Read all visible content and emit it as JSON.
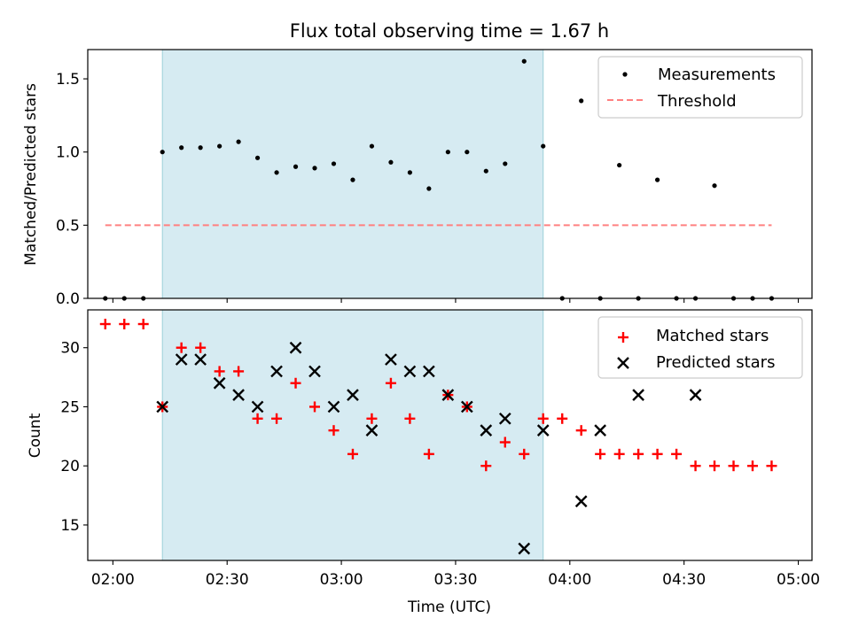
{
  "chart_data": [
    {
      "type": "scatter",
      "title": "Flux total observing time = 1.67 h",
      "ylabel": "Matched/Predicted stars",
      "xlim": [
        1.89,
        5.06
      ],
      "ylim": [
        0.0,
        1.7
      ],
      "yticks": [
        0.0,
        0.5,
        1.0,
        1.5
      ],
      "ytick_labels": [
        "0.0",
        "0.5",
        "1.0",
        "1.5"
      ],
      "shaded_interval": [
        2.2167,
        3.8833
      ],
      "series": [
        {
          "name": "Measurements",
          "marker": "dot",
          "color": "#000000",
          "x": [
            1.9667,
            2.05,
            2.1333,
            2.2167,
            2.3,
            2.3833,
            2.4667,
            2.55,
            2.6333,
            2.7167,
            2.8,
            2.8833,
            2.9667,
            3.05,
            3.1333,
            3.2167,
            3.3,
            3.3833,
            3.4667,
            3.55,
            3.6333,
            3.7167,
            3.8,
            3.8833,
            3.9667,
            4.05,
            4.1333,
            4.2167,
            4.3,
            4.3833,
            4.4667,
            4.55,
            4.6333,
            4.7167,
            4.8,
            4.8833
          ],
          "y": [
            0,
            0,
            0,
            1.0,
            1.03,
            1.03,
            1.04,
            1.07,
            0.96,
            0.86,
            0.9,
            0.89,
            0.92,
            0.81,
            1.04,
            0.93,
            0.86,
            0.75,
            1.0,
            1.0,
            0.87,
            0.92,
            1.62,
            1.04,
            0,
            1.35,
            0,
            0.91,
            0,
            0.81,
            0,
            0,
            0.77,
            0,
            0,
            0
          ]
        },
        {
          "name": "Threshold",
          "style": "dashed",
          "color": "#ff8080",
          "x": [
            1.9667,
            4.8833
          ],
          "y": [
            0.5,
            0.5
          ]
        }
      ],
      "legend_position": "upper right"
    },
    {
      "type": "scatter",
      "xlabel": "Time (UTC)",
      "ylabel": "Count",
      "xlim": [
        1.89,
        5.06
      ],
      "ylim": [
        12,
        33.2
      ],
      "xticks": [
        2.0,
        2.5,
        3.0,
        3.5,
        4.0,
        4.5,
        5.0
      ],
      "xtick_labels": [
        "02:00",
        "02:30",
        "03:00",
        "03:30",
        "04:00",
        "04:30",
        "05:00"
      ],
      "yticks": [
        15,
        20,
        25,
        30
      ],
      "ytick_labels": [
        "15",
        "20",
        "25",
        "30"
      ],
      "shaded_interval": [
        2.2167,
        3.8833
      ],
      "series": [
        {
          "name": "Matched stars",
          "marker": "plus",
          "color": "#ff0000",
          "x": [
            1.9667,
            2.05,
            2.1333,
            2.2167,
            2.3,
            2.3833,
            2.4667,
            2.55,
            2.6333,
            2.7167,
            2.8,
            2.8833,
            2.9667,
            3.05,
            3.1333,
            3.2167,
            3.3,
            3.3833,
            3.4667,
            3.55,
            3.6333,
            3.7167,
            3.8,
            3.8833,
            3.9667,
            4.05,
            4.1333,
            4.2167,
            4.3,
            4.3833,
            4.4667,
            4.55,
            4.6333,
            4.7167,
            4.8,
            4.8833
          ],
          "y": [
            32,
            32,
            32,
            25,
            30,
            30,
            28,
            28,
            24,
            24,
            27,
            25,
            23,
            21,
            24,
            27,
            24,
            21,
            26,
            25,
            20,
            22,
            21,
            24,
            24,
            23,
            21,
            21,
            21,
            21,
            21,
            20,
            20,
            20,
            20,
            20
          ]
        },
        {
          "name": "Predicted stars",
          "marker": "x",
          "color": "#000000",
          "x": [
            2.2167,
            2.3,
            2.3833,
            2.4667,
            2.55,
            2.6333,
            2.7167,
            2.8,
            2.8833,
            2.9667,
            3.05,
            3.1333,
            3.2167,
            3.3,
            3.3833,
            3.4667,
            3.55,
            3.6333,
            3.7167,
            3.8,
            3.8833,
            4.05,
            4.1333,
            4.3,
            4.55
          ],
          "y": [
            25,
            29,
            29,
            27,
            26,
            25,
            28,
            30,
            28,
            25,
            26,
            23,
            29,
            28,
            28,
            26,
            25,
            23,
            24,
            13,
            23,
            17,
            23,
            26,
            26
          ]
        }
      ],
      "legend_position": "upper right"
    }
  ]
}
